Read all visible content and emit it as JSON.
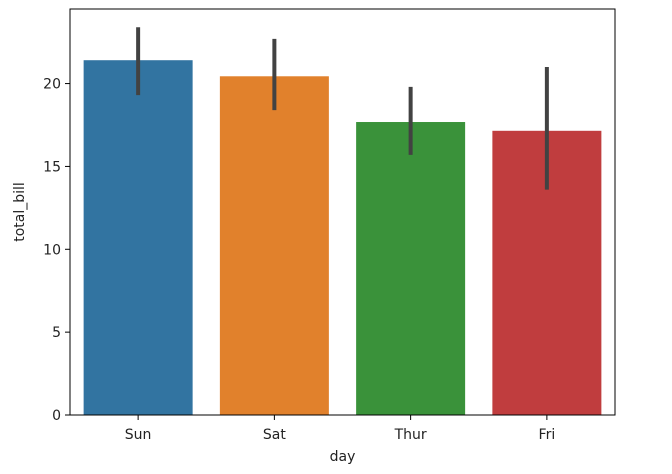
{
  "chart_data": {
    "type": "bar",
    "categories": [
      "Sun",
      "Sat",
      "Thur",
      "Fri"
    ],
    "values": [
      21.41,
      20.44,
      17.68,
      17.15
    ],
    "error_bars": [
      {
        "low": 19.3,
        "high": 23.4
      },
      {
        "low": 18.4,
        "high": 22.7
      },
      {
        "low": 15.7,
        "high": 19.8
      },
      {
        "low": 13.6,
        "high": 21.0
      }
    ],
    "colors": [
      "#3274a1",
      "#e1812c",
      "#3a923a",
      "#c03d3e"
    ],
    "error_color": "#424242",
    "xlabel": "day",
    "ylabel": "total_bill",
    "ylim": [
      0,
      24.5
    ],
    "yticks": [
      0,
      5,
      10,
      15,
      20
    ],
    "grid": false
  }
}
